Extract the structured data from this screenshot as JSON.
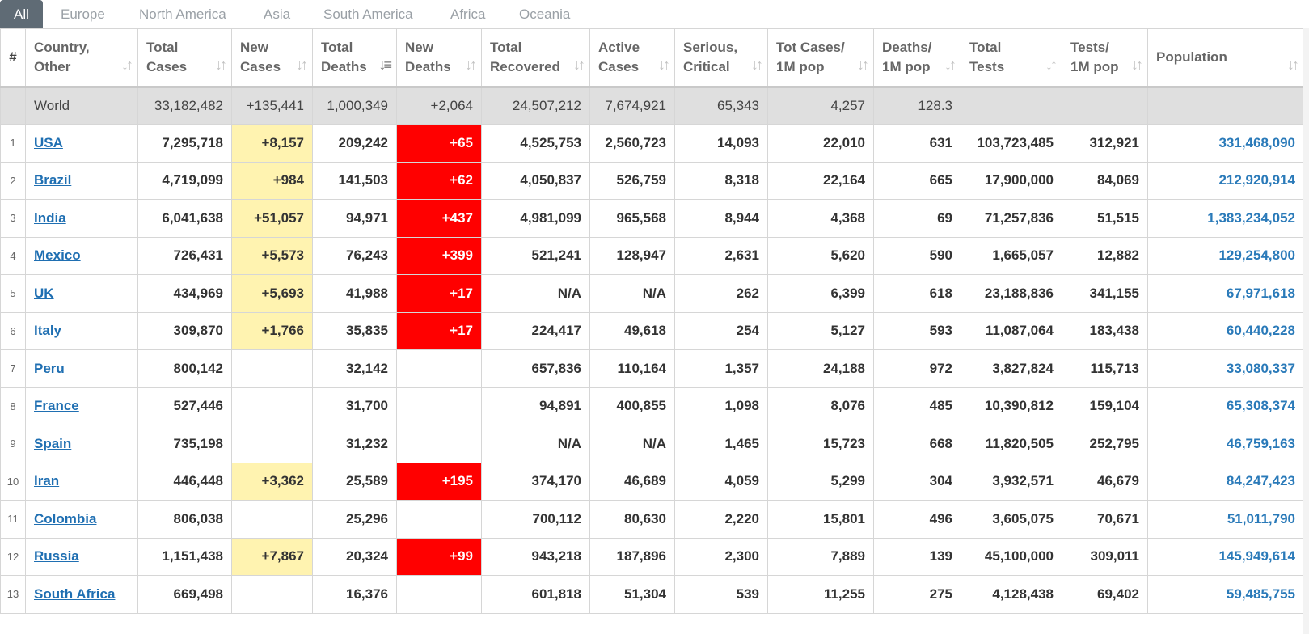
{
  "tabs": [
    "All",
    "Europe",
    "North America",
    "Asia",
    "South America",
    "Africa",
    "Oceania"
  ],
  "headers": [
    "#",
    "Country,\nOther",
    "Total\nCases",
    "New\nCases",
    "Total\nDeaths",
    "New\nDeaths",
    "Total\nRecovered",
    "Active\nCases",
    "Serious,\nCritical",
    "Tot Cases/\n1M pop",
    "Deaths/\n1M pop",
    "Total\nTests",
    "Tests/\n1M pop",
    "Population"
  ],
  "sort_glyph": "↓↑",
  "sorted_glyph": "↓≡",
  "world": {
    "country": "World",
    "total_cases": "33,182,482",
    "new_cases": "+135,441",
    "total_deaths": "1,000,349",
    "new_deaths": "+2,064",
    "total_recovered": "24,507,212",
    "active_cases": "7,674,921",
    "serious": "65,343",
    "cases_per_1m": "4,257",
    "deaths_per_1m": "128.3",
    "total_tests": "",
    "tests_per_1m": "",
    "population": ""
  },
  "rows": [
    {
      "idx": "1",
      "country": "USA",
      "total_cases": "7,295,718",
      "new_cases": "+8,157",
      "total_deaths": "209,242",
      "new_deaths": "+65",
      "total_recovered": "4,525,753",
      "active_cases": "2,560,723",
      "serious": "14,093",
      "cases_per_1m": "22,010",
      "deaths_per_1m": "631",
      "total_tests": "103,723,485",
      "tests_per_1m": "312,921",
      "population": "331,468,090"
    },
    {
      "idx": "2",
      "country": "Brazil",
      "total_cases": "4,719,099",
      "new_cases": "+984",
      "total_deaths": "141,503",
      "new_deaths": "+62",
      "total_recovered": "4,050,837",
      "active_cases": "526,759",
      "serious": "8,318",
      "cases_per_1m": "22,164",
      "deaths_per_1m": "665",
      "total_tests": "17,900,000",
      "tests_per_1m": "84,069",
      "population": "212,920,914"
    },
    {
      "idx": "3",
      "country": "India",
      "total_cases": "6,041,638",
      "new_cases": "+51,057",
      "total_deaths": "94,971",
      "new_deaths": "+437",
      "total_recovered": "4,981,099",
      "active_cases": "965,568",
      "serious": "8,944",
      "cases_per_1m": "4,368",
      "deaths_per_1m": "69",
      "total_tests": "71,257,836",
      "tests_per_1m": "51,515",
      "population": "1,383,234,052"
    },
    {
      "idx": "4",
      "country": "Mexico",
      "total_cases": "726,431",
      "new_cases": "+5,573",
      "total_deaths": "76,243",
      "new_deaths": "+399",
      "total_recovered": "521,241",
      "active_cases": "128,947",
      "serious": "2,631",
      "cases_per_1m": "5,620",
      "deaths_per_1m": "590",
      "total_tests": "1,665,057",
      "tests_per_1m": "12,882",
      "population": "129,254,800"
    },
    {
      "idx": "5",
      "country": "UK",
      "total_cases": "434,969",
      "new_cases": "+5,693",
      "total_deaths": "41,988",
      "new_deaths": "+17",
      "total_recovered": "N/A",
      "active_cases": "N/A",
      "serious": "262",
      "cases_per_1m": "6,399",
      "deaths_per_1m": "618",
      "total_tests": "23,188,836",
      "tests_per_1m": "341,155",
      "population": "67,971,618"
    },
    {
      "idx": "6",
      "country": "Italy",
      "total_cases": "309,870",
      "new_cases": "+1,766",
      "total_deaths": "35,835",
      "new_deaths": "+17",
      "total_recovered": "224,417",
      "active_cases": "49,618",
      "serious": "254",
      "cases_per_1m": "5,127",
      "deaths_per_1m": "593",
      "total_tests": "11,087,064",
      "tests_per_1m": "183,438",
      "population": "60,440,228"
    },
    {
      "idx": "7",
      "country": "Peru",
      "total_cases": "800,142",
      "new_cases": "",
      "total_deaths": "32,142",
      "new_deaths": "",
      "total_recovered": "657,836",
      "active_cases": "110,164",
      "serious": "1,357",
      "cases_per_1m": "24,188",
      "deaths_per_1m": "972",
      "total_tests": "3,827,824",
      "tests_per_1m": "115,713",
      "population": "33,080,337"
    },
    {
      "idx": "8",
      "country": "France",
      "total_cases": "527,446",
      "new_cases": "",
      "total_deaths": "31,700",
      "new_deaths": "",
      "total_recovered": "94,891",
      "active_cases": "400,855",
      "serious": "1,098",
      "cases_per_1m": "8,076",
      "deaths_per_1m": "485",
      "total_tests": "10,390,812",
      "tests_per_1m": "159,104",
      "population": "65,308,374"
    },
    {
      "idx": "9",
      "country": "Spain",
      "total_cases": "735,198",
      "new_cases": "",
      "total_deaths": "31,232",
      "new_deaths": "",
      "total_recovered": "N/A",
      "active_cases": "N/A",
      "serious": "1,465",
      "cases_per_1m": "15,723",
      "deaths_per_1m": "668",
      "total_tests": "11,820,505",
      "tests_per_1m": "252,795",
      "population": "46,759,163"
    },
    {
      "idx": "10",
      "country": "Iran",
      "total_cases": "446,448",
      "new_cases": "+3,362",
      "total_deaths": "25,589",
      "new_deaths": "+195",
      "total_recovered": "374,170",
      "active_cases": "46,689",
      "serious": "4,059",
      "cases_per_1m": "5,299",
      "deaths_per_1m": "304",
      "total_tests": "3,932,571",
      "tests_per_1m": "46,679",
      "population": "84,247,423"
    },
    {
      "idx": "11",
      "country": "Colombia",
      "total_cases": "806,038",
      "new_cases": "",
      "total_deaths": "25,296",
      "new_deaths": "",
      "total_recovered": "700,112",
      "active_cases": "80,630",
      "serious": "2,220",
      "cases_per_1m": "15,801",
      "deaths_per_1m": "496",
      "total_tests": "3,605,075",
      "tests_per_1m": "70,671",
      "population": "51,011,790"
    },
    {
      "idx": "12",
      "country": "Russia",
      "total_cases": "1,151,438",
      "new_cases": "+7,867",
      "total_deaths": "20,324",
      "new_deaths": "+99",
      "total_recovered": "943,218",
      "active_cases": "187,896",
      "serious": "2,300",
      "cases_per_1m": "7,889",
      "deaths_per_1m": "139",
      "total_tests": "45,100,000",
      "tests_per_1m": "309,011",
      "population": "145,949,614"
    },
    {
      "idx": "13",
      "country": "South Africa",
      "total_cases": "669,498",
      "new_cases": "",
      "total_deaths": "16,376",
      "new_deaths": "",
      "total_recovered": "601,818",
      "active_cases": "51,304",
      "serious": "539",
      "cases_per_1m": "11,255",
      "deaths_per_1m": "275",
      "total_tests": "4,128,438",
      "tests_per_1m": "69,402",
      "population": "59,485,755"
    }
  ],
  "colors": {
    "new_cases_highlight": "#fff3b0",
    "new_deaths_highlight": "#ff0000",
    "world_row": "#dfdfdf",
    "link": "#1f6fb2",
    "active_tab": "#5f6b75"
  }
}
